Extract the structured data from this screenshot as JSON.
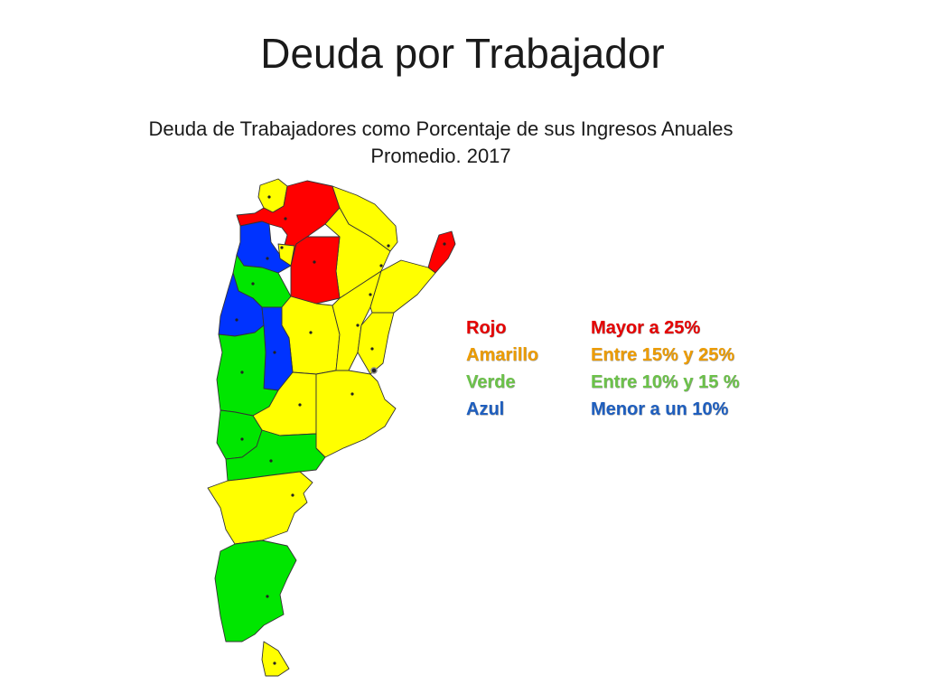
{
  "title": "Deuda por Trabajador",
  "subtitle": {
    "line1": "Deuda de Trabajadores como Porcentaje de sus Ingresos Anuales",
    "line2": "Promedio. 2017"
  },
  "colors": {
    "rojo": "#ff0000",
    "amarillo": "#ffff00",
    "verde": "#00e600",
    "azul": "#0033ff",
    "legend_rojo": "#e60000",
    "legend_amarillo": "#ed9c00",
    "legend_verde": "#6cc24a",
    "legend_azul": "#1f5fbf"
  },
  "legend": [
    {
      "label": "Rojo",
      "range": "Mayor a 25%",
      "color": "#e60000"
    },
    {
      "label": "Amarillo",
      "range": "Entre 15% y 25%",
      "color": "#ed9c00"
    },
    {
      "label": "Verde",
      "range": "Entre 10% y 15 %",
      "color": "#6cc24a"
    },
    {
      "label": "Azul",
      "range": "Menor a un 10%",
      "color": "#1f5fbf"
    }
  ],
  "map": {
    "country": "Argentina",
    "regions": [
      {
        "id": "jujuy",
        "category": "amarillo"
      },
      {
        "id": "salta",
        "category": "rojo"
      },
      {
        "id": "formosa",
        "category": "amarillo"
      },
      {
        "id": "chaco",
        "category": "amarillo"
      },
      {
        "id": "misiones",
        "category": "rojo"
      },
      {
        "id": "catamarca",
        "category": "azul"
      },
      {
        "id": "tucuman",
        "category": "amarillo"
      },
      {
        "id": "santiago-del-estero",
        "category": "rojo"
      },
      {
        "id": "la-rioja",
        "category": "verde"
      },
      {
        "id": "san-juan",
        "category": "azul"
      },
      {
        "id": "cordoba",
        "category": "amarillo"
      },
      {
        "id": "santa-fe",
        "category": "amarillo"
      },
      {
        "id": "corrientes",
        "category": "amarillo"
      },
      {
        "id": "entre-rios",
        "category": "amarillo"
      },
      {
        "id": "san-luis",
        "category": "azul"
      },
      {
        "id": "mendoza",
        "category": "verde"
      },
      {
        "id": "la-pampa",
        "category": "amarillo"
      },
      {
        "id": "buenos-aires",
        "category": "amarillo"
      },
      {
        "id": "neuquen",
        "category": "verde"
      },
      {
        "id": "rio-negro",
        "category": "verde"
      },
      {
        "id": "chubut",
        "category": "amarillo"
      },
      {
        "id": "santa-cruz",
        "category": "verde"
      },
      {
        "id": "tierra-del-fuego",
        "category": "amarillo"
      }
    ]
  }
}
